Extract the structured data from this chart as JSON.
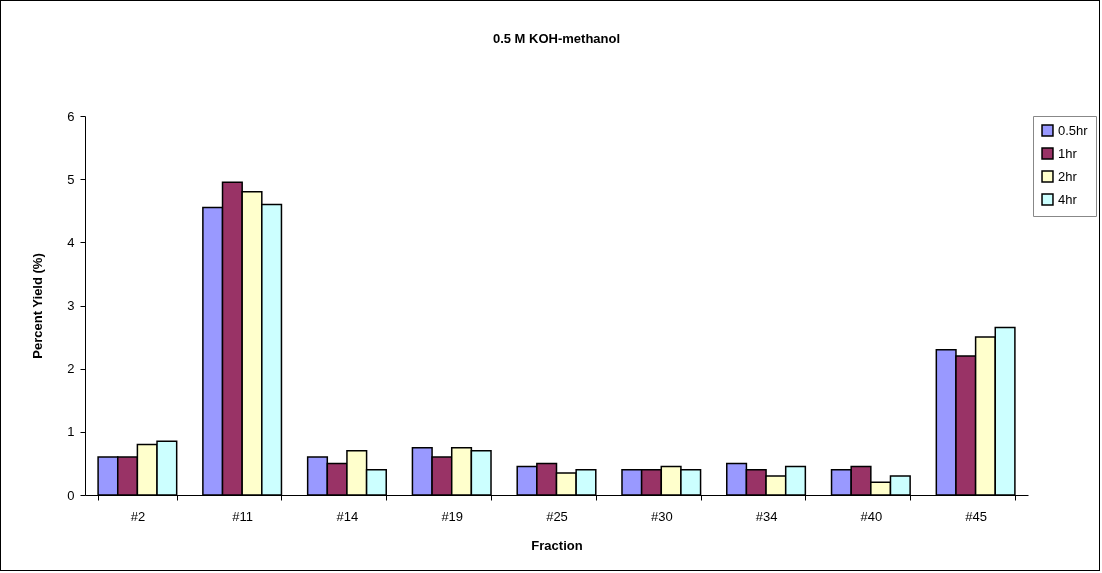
{
  "chart_data": {
    "type": "bar",
    "title": "0.5 M KOH-methanol",
    "xlabel": "Fraction",
    "ylabel": "Percent Yield (%)",
    "categories": [
      "#2",
      "#11",
      "#14",
      "#19",
      "#25",
      "#30",
      "#34",
      "#40",
      "#45"
    ],
    "series": [
      {
        "name": "0.5hr",
        "color": "#9999ff",
        "values": [
          0.6,
          4.55,
          0.6,
          0.75,
          0.45,
          0.4,
          0.5,
          0.4,
          2.3
        ]
      },
      {
        "name": "1hr",
        "color": "#993366",
        "values": [
          0.6,
          4.95,
          0.5,
          0.6,
          0.5,
          0.4,
          0.4,
          0.45,
          2.2
        ]
      },
      {
        "name": "2hr",
        "color": "#ffffcc",
        "values": [
          0.8,
          4.8,
          0.7,
          0.75,
          0.35,
          0.45,
          0.3,
          0.2,
          2.5
        ]
      },
      {
        "name": "4hr",
        "color": "#ccffff",
        "values": [
          0.85,
          4.6,
          0.4,
          0.7,
          0.4,
          0.4,
          0.45,
          0.3,
          2.65
        ]
      }
    ],
    "ylim": [
      0,
      6
    ],
    "yticks": [
      0,
      1,
      2,
      3,
      4,
      5,
      6
    ],
    "grid": false,
    "legend": "right"
  }
}
